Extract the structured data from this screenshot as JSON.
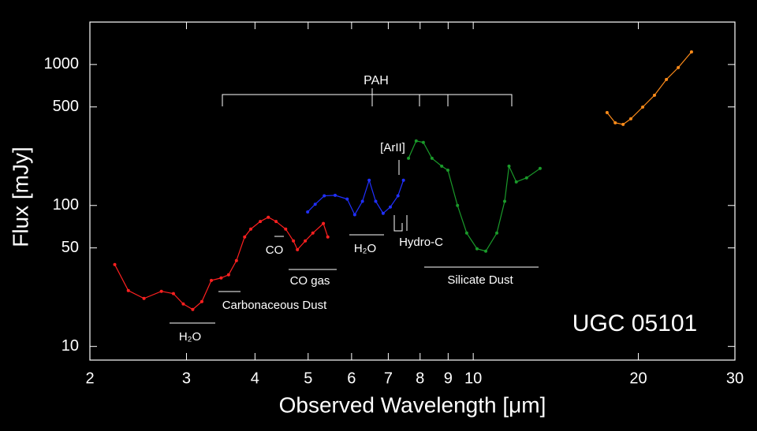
{
  "chart_data": {
    "type": "line",
    "xlabel": "Observed Wavelength [μm]",
    "ylabel": "Flux [mJy]",
    "xscale": "log",
    "yscale": "log",
    "xlim": [
      2,
      30
    ],
    "ylim": [
      8,
      2000
    ],
    "xticks": [
      2,
      3,
      4,
      5,
      6,
      7,
      8,
      9,
      10,
      20,
      30
    ],
    "yticks": [
      10,
      50,
      100,
      500,
      1000
    ],
    "series": [
      {
        "color": "#ff2020",
        "x": [
          2.22,
          2.35,
          2.51,
          2.7,
          2.84,
          2.96,
          3.08,
          3.2,
          3.33,
          3.47,
          3.58,
          3.7,
          3.83,
          3.93,
          4.09,
          4.23,
          4.37,
          4.55,
          4.7,
          4.78,
          4.94,
          5.1,
          5.33,
          5.43
        ],
        "values": [
          38.1,
          24.9,
          21.9,
          24.6,
          23.7,
          20.0,
          18.3,
          20.8,
          29.4,
          30.6,
          32.2,
          40.6,
          59.8,
          68,
          77,
          82.5,
          77,
          68,
          56,
          48.6,
          56,
          63.7,
          74.5,
          59.8
        ]
      },
      {
        "color": "#2030ff",
        "x": [
          4.99,
          5.15,
          5.35,
          5.6,
          5.89,
          6.08,
          6.28,
          6.46,
          6.64,
          6.85,
          7.06,
          7.29,
          7.46
        ],
        "values": [
          90,
          102,
          117,
          118,
          111,
          86,
          107,
          151,
          107,
          88,
          97.5,
          117,
          151
        ]
      },
      {
        "color": "#1a9a2a",
        "x": [
          7.62,
          7.87,
          8.11,
          8.41,
          8.76,
          8.99,
          9.36,
          9.73,
          10.16,
          10.54,
          11.04,
          11.41,
          11.62,
          11.98,
          12.51,
          13.24
        ],
        "values": [
          216,
          287,
          280,
          216,
          190,
          178,
          100,
          63.7,
          49.3,
          47.4,
          63.7,
          107,
          190,
          147,
          157,
          183
        ]
      },
      {
        "color": "#ff8c1a",
        "x": [
          17.54,
          18.15,
          18.76,
          19.38,
          20.37,
          21.4,
          22.5,
          23.65,
          25.0
        ],
        "values": [
          456,
          386,
          376,
          412,
          499,
          605,
          783,
          951,
          1228
        ]
      }
    ],
    "annotations": [
      "PAH",
      "[ArII]",
      "CO",
      "CO gas",
      "Carbonaceous Dust",
      "H₂O",
      "H₂O",
      "Hydro-C",
      "Silicate Dust",
      "UGC 05101"
    ]
  }
}
